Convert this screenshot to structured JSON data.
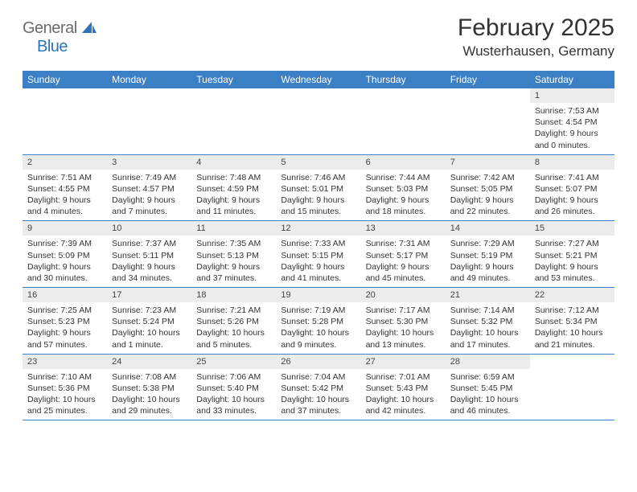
{
  "logo": {
    "general": "General",
    "blue": "Blue"
  },
  "title": "February 2025",
  "location": "Wusterhausen, Germany",
  "colors": {
    "header_bg": "#3b7fc4",
    "header_text": "#ffffff",
    "cell_num_bg": "#ececec",
    "divider": "#3b7fc4",
    "logo_gray": "#6b6b6b",
    "logo_blue": "#2a75bb"
  },
  "day_names": [
    "Sunday",
    "Monday",
    "Tuesday",
    "Wednesday",
    "Thursday",
    "Friday",
    "Saturday"
  ],
  "weeks": [
    [
      {
        "n": "",
        "sr": "",
        "ss": "",
        "dl": ""
      },
      {
        "n": "",
        "sr": "",
        "ss": "",
        "dl": ""
      },
      {
        "n": "",
        "sr": "",
        "ss": "",
        "dl": ""
      },
      {
        "n": "",
        "sr": "",
        "ss": "",
        "dl": ""
      },
      {
        "n": "",
        "sr": "",
        "ss": "",
        "dl": ""
      },
      {
        "n": "",
        "sr": "",
        "ss": "",
        "dl": ""
      },
      {
        "n": "1",
        "sr": "Sunrise: 7:53 AM",
        "ss": "Sunset: 4:54 PM",
        "dl": "Daylight: 9 hours and 0 minutes."
      }
    ],
    [
      {
        "n": "2",
        "sr": "Sunrise: 7:51 AM",
        "ss": "Sunset: 4:55 PM",
        "dl": "Daylight: 9 hours and 4 minutes."
      },
      {
        "n": "3",
        "sr": "Sunrise: 7:49 AM",
        "ss": "Sunset: 4:57 PM",
        "dl": "Daylight: 9 hours and 7 minutes."
      },
      {
        "n": "4",
        "sr": "Sunrise: 7:48 AM",
        "ss": "Sunset: 4:59 PM",
        "dl": "Daylight: 9 hours and 11 minutes."
      },
      {
        "n": "5",
        "sr": "Sunrise: 7:46 AM",
        "ss": "Sunset: 5:01 PM",
        "dl": "Daylight: 9 hours and 15 minutes."
      },
      {
        "n": "6",
        "sr": "Sunrise: 7:44 AM",
        "ss": "Sunset: 5:03 PM",
        "dl": "Daylight: 9 hours and 18 minutes."
      },
      {
        "n": "7",
        "sr": "Sunrise: 7:42 AM",
        "ss": "Sunset: 5:05 PM",
        "dl": "Daylight: 9 hours and 22 minutes."
      },
      {
        "n": "8",
        "sr": "Sunrise: 7:41 AM",
        "ss": "Sunset: 5:07 PM",
        "dl": "Daylight: 9 hours and 26 minutes."
      }
    ],
    [
      {
        "n": "9",
        "sr": "Sunrise: 7:39 AM",
        "ss": "Sunset: 5:09 PM",
        "dl": "Daylight: 9 hours and 30 minutes."
      },
      {
        "n": "10",
        "sr": "Sunrise: 7:37 AM",
        "ss": "Sunset: 5:11 PM",
        "dl": "Daylight: 9 hours and 34 minutes."
      },
      {
        "n": "11",
        "sr": "Sunrise: 7:35 AM",
        "ss": "Sunset: 5:13 PM",
        "dl": "Daylight: 9 hours and 37 minutes."
      },
      {
        "n": "12",
        "sr": "Sunrise: 7:33 AM",
        "ss": "Sunset: 5:15 PM",
        "dl": "Daylight: 9 hours and 41 minutes."
      },
      {
        "n": "13",
        "sr": "Sunrise: 7:31 AM",
        "ss": "Sunset: 5:17 PM",
        "dl": "Daylight: 9 hours and 45 minutes."
      },
      {
        "n": "14",
        "sr": "Sunrise: 7:29 AM",
        "ss": "Sunset: 5:19 PM",
        "dl": "Daylight: 9 hours and 49 minutes."
      },
      {
        "n": "15",
        "sr": "Sunrise: 7:27 AM",
        "ss": "Sunset: 5:21 PM",
        "dl": "Daylight: 9 hours and 53 minutes."
      }
    ],
    [
      {
        "n": "16",
        "sr": "Sunrise: 7:25 AM",
        "ss": "Sunset: 5:23 PM",
        "dl": "Daylight: 9 hours and 57 minutes."
      },
      {
        "n": "17",
        "sr": "Sunrise: 7:23 AM",
        "ss": "Sunset: 5:24 PM",
        "dl": "Daylight: 10 hours and 1 minute."
      },
      {
        "n": "18",
        "sr": "Sunrise: 7:21 AM",
        "ss": "Sunset: 5:26 PM",
        "dl": "Daylight: 10 hours and 5 minutes."
      },
      {
        "n": "19",
        "sr": "Sunrise: 7:19 AM",
        "ss": "Sunset: 5:28 PM",
        "dl": "Daylight: 10 hours and 9 minutes."
      },
      {
        "n": "20",
        "sr": "Sunrise: 7:17 AM",
        "ss": "Sunset: 5:30 PM",
        "dl": "Daylight: 10 hours and 13 minutes."
      },
      {
        "n": "21",
        "sr": "Sunrise: 7:14 AM",
        "ss": "Sunset: 5:32 PM",
        "dl": "Daylight: 10 hours and 17 minutes."
      },
      {
        "n": "22",
        "sr": "Sunrise: 7:12 AM",
        "ss": "Sunset: 5:34 PM",
        "dl": "Daylight: 10 hours and 21 minutes."
      }
    ],
    [
      {
        "n": "23",
        "sr": "Sunrise: 7:10 AM",
        "ss": "Sunset: 5:36 PM",
        "dl": "Daylight: 10 hours and 25 minutes."
      },
      {
        "n": "24",
        "sr": "Sunrise: 7:08 AM",
        "ss": "Sunset: 5:38 PM",
        "dl": "Daylight: 10 hours and 29 minutes."
      },
      {
        "n": "25",
        "sr": "Sunrise: 7:06 AM",
        "ss": "Sunset: 5:40 PM",
        "dl": "Daylight: 10 hours and 33 minutes."
      },
      {
        "n": "26",
        "sr": "Sunrise: 7:04 AM",
        "ss": "Sunset: 5:42 PM",
        "dl": "Daylight: 10 hours and 37 minutes."
      },
      {
        "n": "27",
        "sr": "Sunrise: 7:01 AM",
        "ss": "Sunset: 5:43 PM",
        "dl": "Daylight: 10 hours and 42 minutes."
      },
      {
        "n": "28",
        "sr": "Sunrise: 6:59 AM",
        "ss": "Sunset: 5:45 PM",
        "dl": "Daylight: 10 hours and 46 minutes."
      },
      {
        "n": "",
        "sr": "",
        "ss": "",
        "dl": ""
      }
    ]
  ]
}
